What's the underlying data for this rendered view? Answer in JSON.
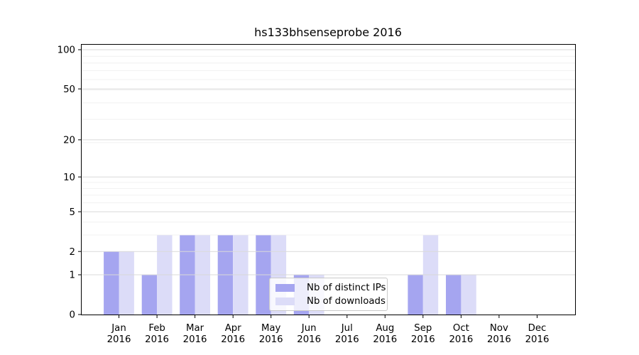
{
  "chart_data": {
    "type": "bar",
    "title": "hs133bhsenseprobe 2016",
    "categories": [
      "Jan",
      "Feb",
      "Mar",
      "Apr",
      "May",
      "Jun",
      "Jul",
      "Aug",
      "Sep",
      "Oct",
      "Nov",
      "Dec"
    ],
    "category_year": "2016",
    "series": [
      {
        "name": "Nb of distinct IPs",
        "color": "#a5a5f0",
        "values": [
          2,
          1,
          3,
          3,
          3,
          1,
          0,
          0,
          1,
          1,
          0,
          0
        ]
      },
      {
        "name": "Nb of downloads",
        "color": "#dcdcf8",
        "values": [
          2,
          3,
          3,
          3,
          3,
          1,
          0,
          0,
          3,
          1,
          0,
          0
        ]
      }
    ],
    "yscale": "log1p",
    "ylim": [
      0,
      110
    ],
    "yticks": [
      0,
      1,
      2,
      5,
      10,
      20,
      50,
      100
    ],
    "yticks_minor": [
      3,
      4,
      6,
      7,
      8,
      9,
      19,
      29,
      39,
      49,
      59,
      69,
      79,
      89
    ],
    "grid": true,
    "grid_over_bars": true,
    "legend_position": "inside-bottom-center",
    "colors": {
      "grid_major": "#d9d9d9",
      "grid_minor": "#ededed",
      "axis": "#000000",
      "text": "#000000",
      "background": "#ffffff"
    }
  }
}
